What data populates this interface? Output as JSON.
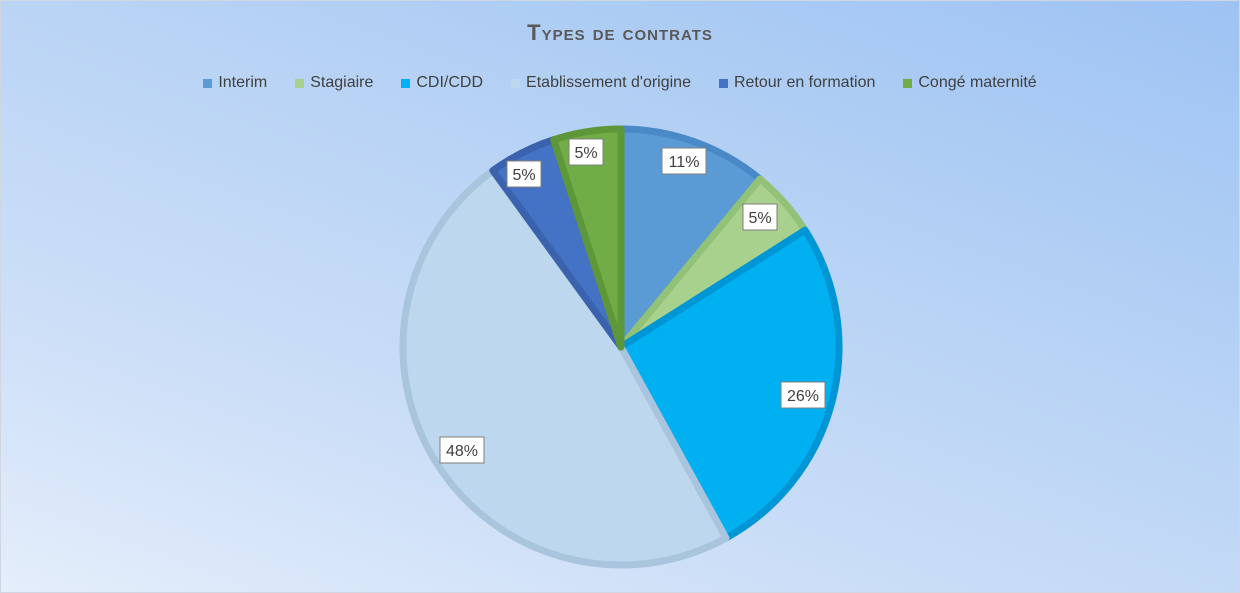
{
  "chart_data": {
    "type": "pie",
    "title": "Types de contrats",
    "legend_position": "top",
    "categories": [
      "Interim",
      "Stagiaire",
      "CDI/CDD",
      "Etablissement d'origine",
      "Retour en formation",
      "Congé maternité"
    ],
    "values": [
      11,
      5,
      26,
      48,
      5,
      5
    ],
    "data_labels": [
      "11%",
      "5%",
      "26%",
      "48%",
      "5%",
      "5%"
    ],
    "colors": [
      "#5b9bd5",
      "#a9d18e",
      "#00b0f0",
      "#bdd7ee",
      "#4472c4",
      "#70ad47"
    ],
    "border_colors": [
      "#4a89c8",
      "#92c277",
      "#0096d6",
      "#a9c4dd",
      "#3a62ad",
      "#5e973a"
    ]
  }
}
